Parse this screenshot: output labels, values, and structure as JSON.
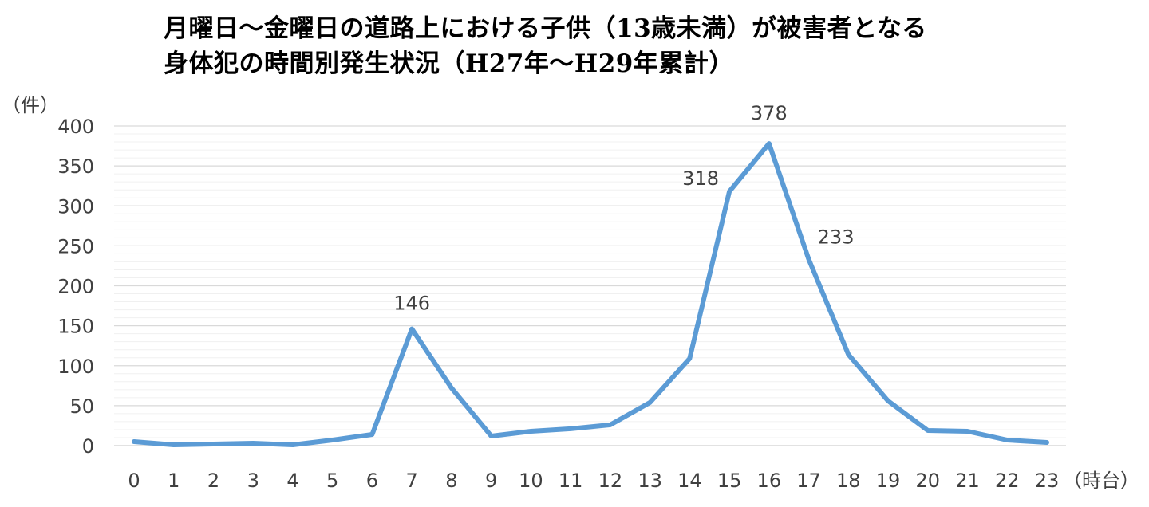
{
  "chart_data": {
    "type": "line",
    "title_lines": [
      "月曜日～金曜日の道路上における子供（13歳未満）が被害者となる",
      "身体犯の時間別発生状況（H27年～H29年累計）"
    ],
    "ylabel": "（件）",
    "xlabel": "（時台）",
    "ylim": [
      0,
      400
    ],
    "y_major_ticks": [
      0,
      50,
      100,
      150,
      200,
      250,
      300,
      350,
      400
    ],
    "minor_grid_step": 10,
    "grid": true,
    "legend": "none",
    "categories": [
      "0",
      "1",
      "2",
      "3",
      "4",
      "5",
      "6",
      "7",
      "8",
      "9",
      "10",
      "11",
      "12",
      "13",
      "14",
      "15",
      "16",
      "17",
      "18",
      "19",
      "20",
      "21",
      "22",
      "23"
    ],
    "series": [
      {
        "values": [
          5,
          1,
          2,
          3,
          1,
          7,
          14,
          146,
          72,
          12,
          18,
          21,
          26,
          54,
          109,
          318,
          378,
          233,
          114,
          56,
          19,
          18,
          7,
          4
        ],
        "color": "#5b9bd5"
      }
    ],
    "data_labels": [
      {
        "index": 7,
        "text": "146"
      },
      {
        "index": 15,
        "text": "318"
      },
      {
        "index": 16,
        "text": "378"
      },
      {
        "index": 17,
        "text": "233"
      }
    ]
  }
}
